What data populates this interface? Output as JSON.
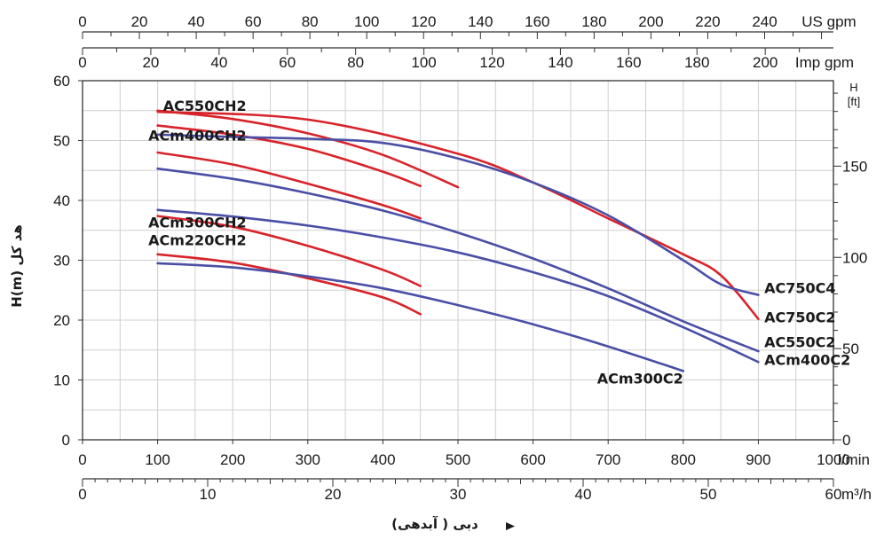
{
  "chart_data": {
    "type": "line",
    "xlabel": "دبی ( آبدهی)",
    "ylabel": "هد کل  H(m)",
    "xunit": "l/min",
    "xunit_m3h": "m³/h",
    "xunit_usgpm": "US gpm",
    "xunit_impgpm": "Imp gpm",
    "yunit_ft_top": "H",
    "yunit_ft_bottom": "[ft]",
    "xlim": [
      0,
      1000
    ],
    "ylim": [
      0,
      60
    ],
    "grid": true,
    "x_ticks": [
      "0",
      "100",
      "200",
      "300",
      "400",
      "500",
      "600",
      "700",
      "800",
      "900",
      "1000"
    ],
    "y_ticks": [
      "0",
      "10",
      "20",
      "30",
      "40",
      "50",
      "60"
    ],
    "m3h_ticks": [
      "0",
      "10",
      "20",
      "30",
      "40",
      "50",
      "60"
    ],
    "us_gpm_ticks": [
      "0",
      "20",
      "40",
      "60",
      "80",
      "100",
      "120",
      "140",
      "160",
      "180",
      "200",
      "220",
      "240"
    ],
    "imp_gpm_ticks": [
      "0",
      "20",
      "40",
      "60",
      "80",
      "100",
      "120",
      "140",
      "160",
      "180",
      "200"
    ],
    "ft_ticks": [
      "0",
      "50",
      "100",
      "150"
    ],
    "colors": {
      "red": "#d8232a",
      "blue": "#4a4fa6",
      "grid": "#cfcfcf",
      "axis": "#333333"
    },
    "series": [
      {
        "name": "AC550CH2",
        "color": "red",
        "points": [
          [
            100,
            55
          ],
          [
            200,
            53.6
          ],
          [
            300,
            51.2
          ],
          [
            400,
            47.6
          ],
          [
            500,
            42.2
          ]
        ]
      },
      {
        "name": "ACm400CH2",
        "color": "red",
        "points": [
          [
            100,
            52.5
          ],
          [
            200,
            51
          ],
          [
            300,
            48.6
          ],
          [
            400,
            44.8
          ],
          [
            450,
            42.4
          ]
        ]
      },
      {
        "name": "",
        "color": "red",
        "points": [
          [
            100,
            48
          ],
          [
            200,
            46
          ],
          [
            300,
            42.8
          ],
          [
            400,
            39.2
          ],
          [
            450,
            37
          ]
        ]
      },
      {
        "name": "ACm300CH2",
        "color": "red",
        "points": [
          [
            100,
            37.4
          ],
          [
            200,
            35.6
          ],
          [
            300,
            32.4
          ],
          [
            400,
            28.4
          ],
          [
            450,
            25.7
          ]
        ]
      },
      {
        "name": "ACm220CH2",
        "color": "red",
        "points": [
          [
            100,
            31
          ],
          [
            200,
            29.6
          ],
          [
            300,
            27
          ],
          [
            400,
            23.8
          ],
          [
            450,
            21
          ]
        ]
      },
      {
        "name": "AC750C2",
        "color": "red",
        "points": [
          [
            100,
            54.8
          ],
          [
            300,
            53.5
          ],
          [
            500,
            47.8
          ],
          [
            600,
            43
          ],
          [
            700,
            37
          ],
          [
            800,
            31
          ],
          [
            850,
            27.5
          ],
          [
            900,
            20.2
          ]
        ]
      },
      {
        "name": "AC750C4",
        "color": "blue",
        "points": [
          [
            100,
            51
          ],
          [
            200,
            50.6
          ],
          [
            300,
            50.3
          ],
          [
            400,
            49.6
          ],
          [
            500,
            47
          ],
          [
            600,
            43
          ],
          [
            700,
            37.5
          ],
          [
            800,
            30
          ],
          [
            850,
            26
          ],
          [
            900,
            24.2
          ]
        ]
      },
      {
        "name": "",
        "color": "blue",
        "points": [
          [
            100,
            45.3
          ],
          [
            200,
            43.6
          ],
          [
            300,
            41.2
          ],
          [
            400,
            38.3
          ],
          [
            500,
            34.6
          ],
          [
            600,
            30.3
          ],
          [
            700,
            25.3
          ],
          [
            800,
            19.8
          ],
          [
            900,
            14.8
          ]
        ]
      },
      {
        "name": "AC550C2",
        "color": "blue",
        "points": [
          [
            100,
            38.4
          ],
          [
            200,
            37.3
          ],
          [
            300,
            35.8
          ],
          [
            400,
            33.8
          ],
          [
            500,
            31.3
          ],
          [
            600,
            28
          ],
          [
            700,
            24
          ],
          [
            800,
            18.8
          ],
          [
            900,
            13
          ]
        ]
      },
      {
        "name": "ACm300C2",
        "color": "blue",
        "points": [
          [
            100,
            29.5
          ],
          [
            200,
            28.8
          ],
          [
            300,
            27.3
          ],
          [
            400,
            25.3
          ],
          [
            500,
            22.5
          ],
          [
            600,
            19.3
          ],
          [
            700,
            15.6
          ],
          [
            800,
            11.5
          ]
        ]
      }
    ],
    "labels": [
      {
        "text": "AC550CH2",
        "x": 100,
        "y": 55
      },
      {
        "text": "ACm400CH2",
        "x": 100,
        "y": 50
      },
      {
        "text": "ACm300CH2",
        "x": 100,
        "y": 35.5
      },
      {
        "text": "ACm220CH2",
        "x": 100,
        "y": 32.5
      },
      {
        "text": "AC750C4",
        "x": 908,
        "y": 24.5
      },
      {
        "text": "AC750C2",
        "x": 908,
        "y": 19.6
      },
      {
        "text": "AC550C2",
        "x": 908,
        "y": 15.5
      },
      {
        "text": "ACm400C2",
        "x": 908,
        "y": 12.5
      },
      {
        "text": "ACm300C2",
        "x": 800,
        "y": 9.4
      }
    ]
  }
}
